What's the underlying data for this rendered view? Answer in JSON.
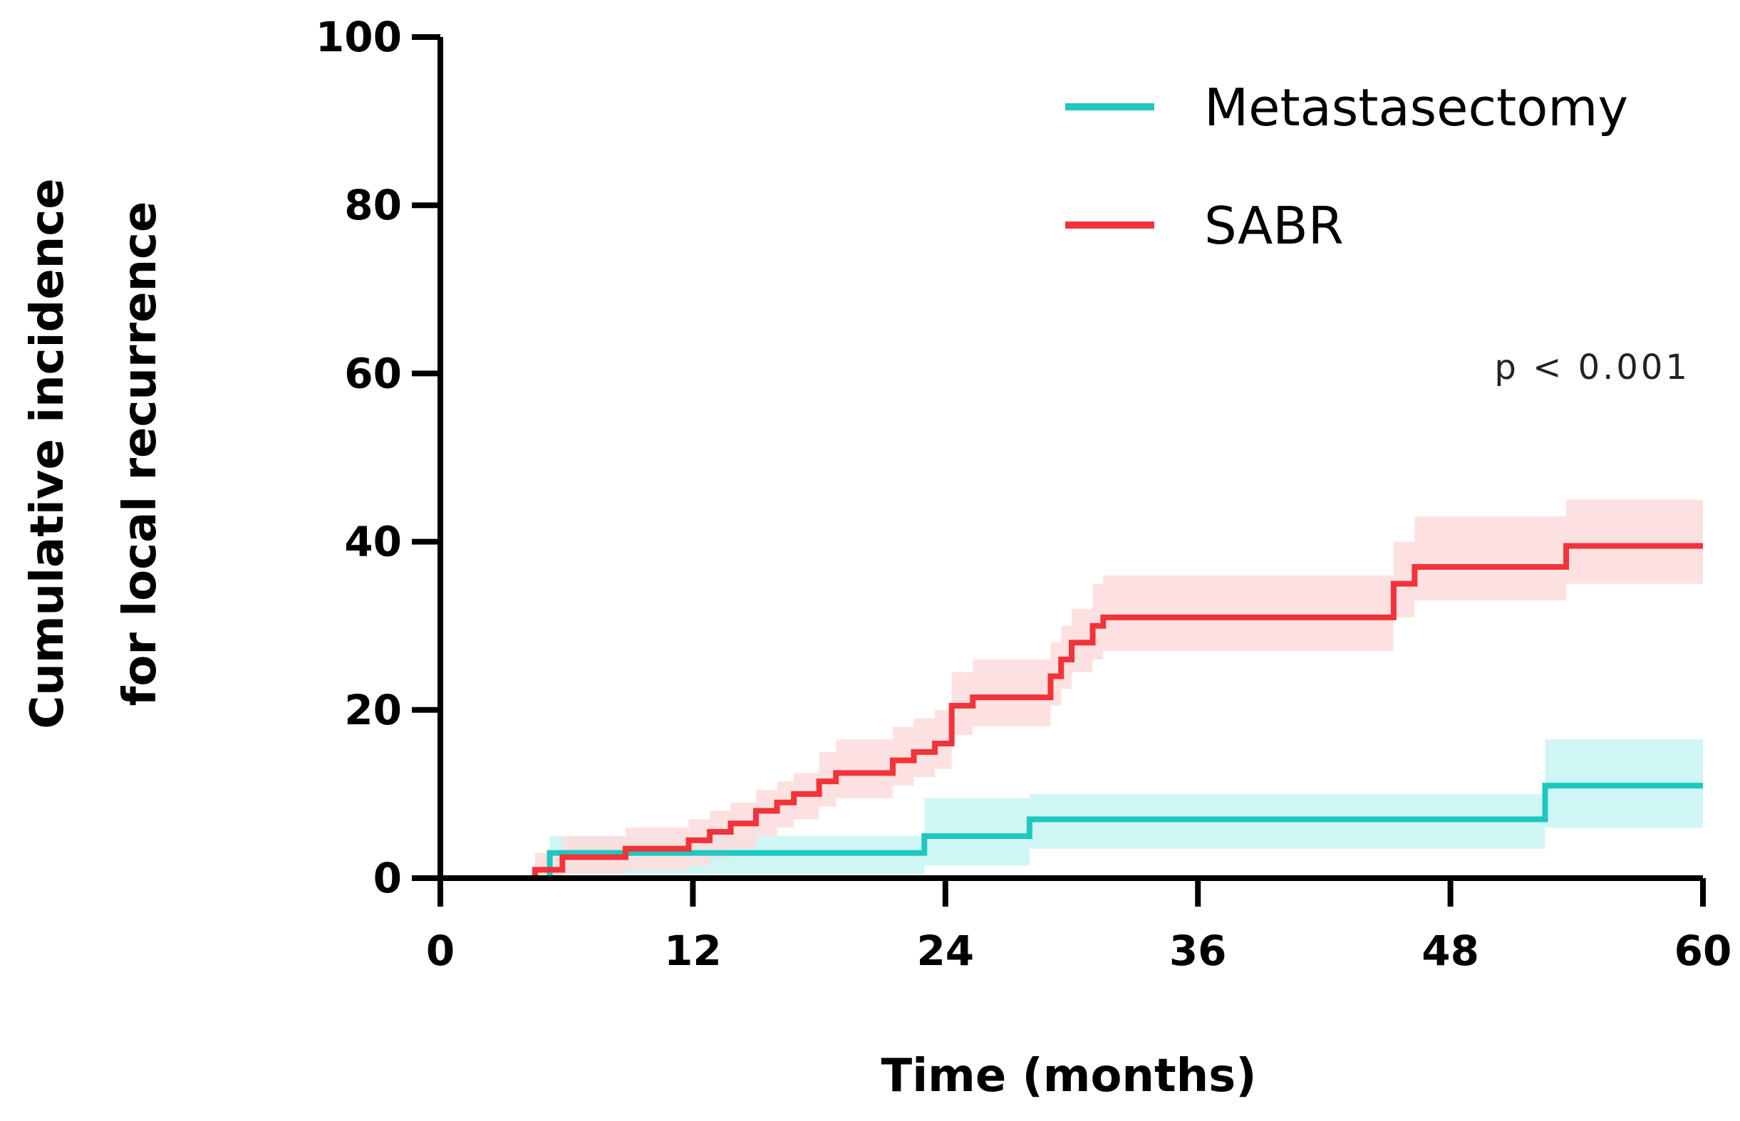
{
  "chart_data": {
    "type": "line",
    "title": "",
    "xlabel": "Time (months)",
    "ylabel_lines": [
      "Cumulative incidence",
      "for local recurrence"
    ],
    "xlim": [
      0,
      60
    ],
    "ylim": [
      0,
      100
    ],
    "xticks": [
      0,
      12,
      24,
      36,
      48,
      60
    ],
    "yticks": [
      0,
      20,
      40,
      60,
      80,
      100
    ],
    "xtick_labels": [
      "0",
      "12",
      "24",
      "36",
      "48",
      "60"
    ],
    "ytick_labels": [
      "0",
      "20",
      "40",
      "60",
      "80",
      "100"
    ],
    "grid": false,
    "legend_position": "top-right",
    "annotation": "p < 0.001",
    "series": [
      {
        "name": "Metastasectomy",
        "color": "#1ec8c0",
        "band_color": "#c8f3f3",
        "step": true,
        "x": [
          0,
          5.2,
          23.0,
          28.0,
          52.5,
          60
        ],
        "y": [
          0,
          3,
          5,
          7,
          11,
          11
        ],
        "lower": [
          0,
          0.5,
          1.5,
          3.5,
          6,
          6
        ],
        "upper": [
          0,
          5,
          9.5,
          10,
          16.5,
          16.5
        ]
      },
      {
        "name": "SABR",
        "color": "#f2333a",
        "band_color": "#fddcdc",
        "step": true,
        "x": [
          0,
          4.5,
          5.8,
          8.8,
          11.8,
          12.8,
          13.8,
          15.0,
          16.0,
          16.8,
          18.0,
          18.8,
          21.5,
          22.5,
          23.5,
          24.3,
          25.3,
          29.0,
          29.5,
          30.0,
          31.0,
          31.5,
          45.3,
          46.3,
          53.5,
          60
        ],
        "y": [
          0,
          1,
          2.5,
          3.5,
          4.5,
          5.5,
          6.5,
          8,
          9,
          10,
          11.5,
          12.5,
          14,
          15,
          16,
          20.5,
          21.5,
          24,
          26,
          28,
          30,
          31,
          35,
          37,
          39.5,
          39.5
        ],
        "lower": [
          0,
          0,
          0.5,
          1,
          1.5,
          2.5,
          3.5,
          5,
          6,
          7,
          8.5,
          9.5,
          11,
          12,
          13,
          17,
          18,
          20.5,
          22.5,
          24.5,
          26,
          27,
          31,
          33,
          35,
          34
        ],
        "upper": [
          0,
          3,
          5,
          6,
          7,
          8,
          9,
          10.5,
          11.5,
          12.5,
          15,
          16.5,
          18,
          19,
          20,
          24.5,
          26,
          28,
          30,
          32,
          35,
          36,
          40,
          43,
          45,
          45.5
        ]
      }
    ]
  }
}
